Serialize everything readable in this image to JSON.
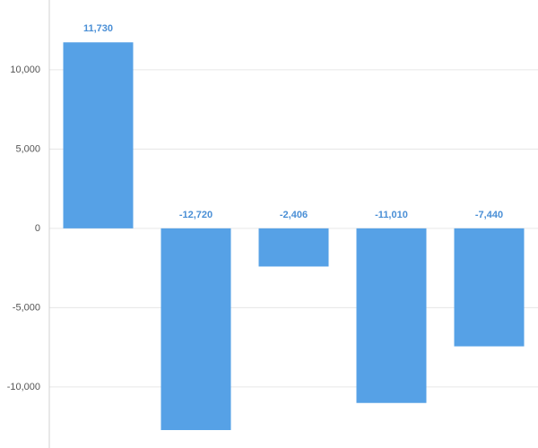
{
  "chart_data": {
    "type": "bar",
    "categories": [
      null,
      null,
      null,
      null,
      null
    ],
    "values": [
      11730,
      -12720,
      -2406,
      -11010,
      -7440
    ],
    "value_labels": [
      "11,730",
      "-12,720",
      "-2,406",
      "-11,010",
      "-7,440"
    ],
    "color": "#56a1e6",
    "ylim": [
      -13850,
      14400
    ],
    "yticks": [
      {
        "value": -10000,
        "label": "-10,000"
      },
      {
        "value": -5000,
        "label": "-5,000"
      },
      0,
      {
        "value": 5000,
        "label": "5,000"
      },
      {
        "value": 10000,
        "label": "10,000"
      }
    ],
    "grid": true
  }
}
